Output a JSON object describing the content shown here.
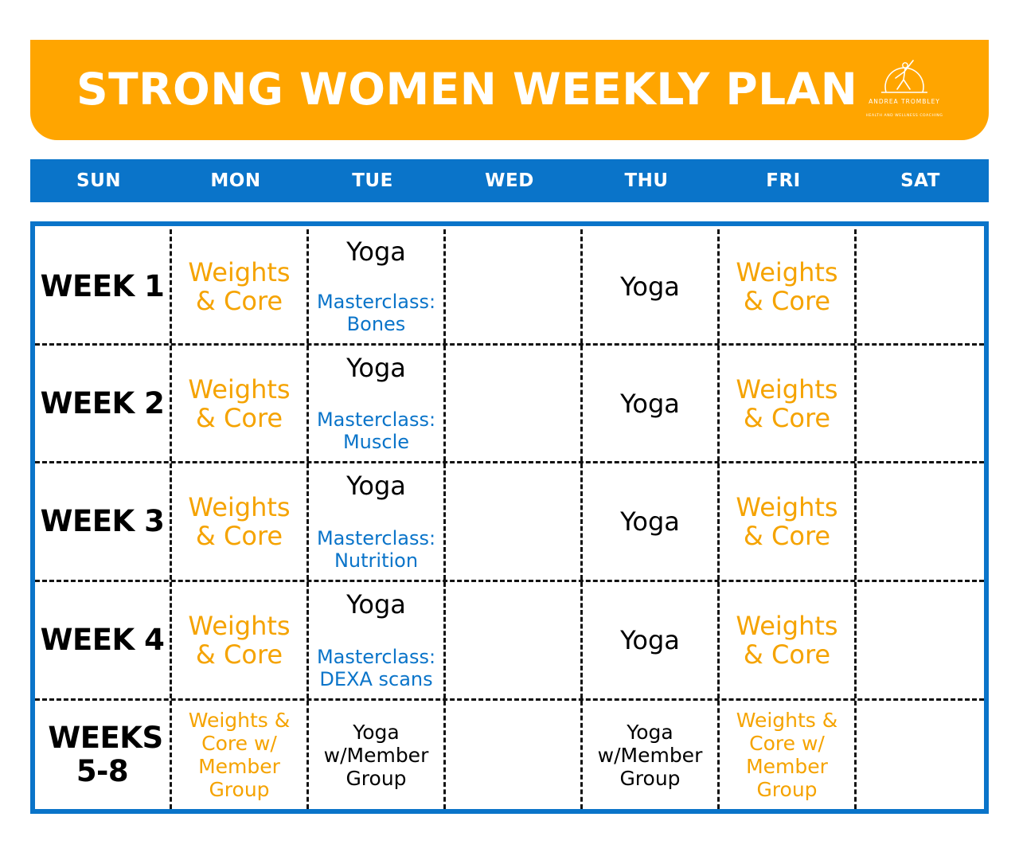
{
  "header": {
    "title": "STRONG WOMEN WEEKLY PLAN",
    "logo_name": "ANDREA TROMBLEY",
    "logo_tagline": "HEALTH AND WELLNESS COACHING"
  },
  "days": [
    "SUN",
    "MON",
    "TUE",
    "WED",
    "THU",
    "FRI",
    "SAT"
  ],
  "weeks": [
    {
      "label": "WEEK 1",
      "mon": [
        "Weights",
        "& Core"
      ],
      "tue_yoga": "Yoga",
      "tue_masterclass": [
        "Masterclass:",
        "Bones"
      ],
      "thu": "Yoga",
      "fri": [
        "Weights",
        "& Core"
      ]
    },
    {
      "label": "WEEK 2",
      "mon": [
        "Weights",
        "& Core"
      ],
      "tue_yoga": "Yoga",
      "tue_masterclass": [
        "Masterclass:",
        "Muscle"
      ],
      "thu": "Yoga",
      "fri": [
        "Weights",
        "& Core"
      ]
    },
    {
      "label": "WEEK 3",
      "mon": [
        "Weights",
        "& Core"
      ],
      "tue_yoga": "Yoga",
      "tue_masterclass": [
        "Masterclass:",
        "Nutrition"
      ],
      "thu": "Yoga",
      "fri": [
        "Weights",
        "& Core"
      ]
    },
    {
      "label": "WEEK 4",
      "mon": [
        "Weights",
        "& Core"
      ],
      "tue_yoga": "Yoga",
      "tue_masterclass": [
        "Masterclass:",
        "DEXA scans"
      ],
      "thu": "Yoga",
      "fri": [
        "Weights",
        "& Core"
      ]
    }
  ],
  "weeks_5_8": {
    "label": [
      "WEEKS",
      "5-8"
    ],
    "mon": [
      "Weights &",
      "Core w/",
      "Member",
      "Group"
    ],
    "tue": [
      "Yoga",
      "w/Member",
      "Group"
    ],
    "thu": [
      "Yoga",
      "w/Member",
      "Group"
    ],
    "fri": [
      "Weights &",
      "Core w/",
      "Member",
      "Group"
    ]
  },
  "colors": {
    "orange": "#ffa500",
    "blue": "#0a74c9",
    "text_orange": "#f5a300"
  }
}
